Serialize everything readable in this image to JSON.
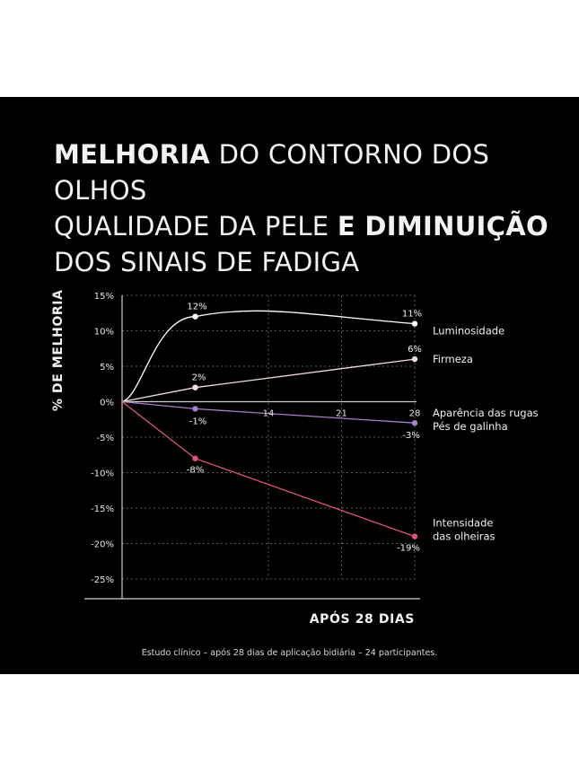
{
  "headline": {
    "line1_bold": "MELHORIA",
    "line1_rest": " DO CONTORNO DOS OLHOS",
    "line2_normal": "QUALIDADE DA PELE ",
    "line2_bold": "E DIMINUIÇÃO",
    "line3": "DOS SINAIS DE FADIGA"
  },
  "colors": {
    "background": "#000000",
    "luminosidade": "#ffffff",
    "firmeza": "#f0dede",
    "rugas": "#a77fc4",
    "olheiras": "#e0517f"
  },
  "chart_data": {
    "type": "line",
    "ylabel": "% DE MELHORIA",
    "xlabel": "APÓS 28 DIAS",
    "ylim": [
      -25,
      15
    ],
    "xlim": [
      0,
      28
    ],
    "y_ticks": [
      "15%",
      "10%",
      "5%",
      "0%",
      "-5%",
      "-10%",
      "-15%",
      "-20%",
      "-25%"
    ],
    "y_tick_values": [
      15,
      10,
      5,
      0,
      -5,
      -10,
      -15,
      -20,
      -25
    ],
    "x_ticks": [
      "14",
      "21",
      "28"
    ],
    "x_tick_values": [
      14,
      21,
      28
    ],
    "grid": true,
    "series": [
      {
        "name": "Luminosidade",
        "color": "#ffffff",
        "x": [
          0,
          7,
          28
        ],
        "values": [
          0,
          12,
          11
        ],
        "point_labels": [
          "",
          "12%",
          "11%"
        ],
        "curve": "smooth"
      },
      {
        "name": "Firmeza",
        "color": "#f0dede",
        "x": [
          0,
          7,
          28
        ],
        "values": [
          0,
          2,
          6
        ],
        "point_labels": [
          "",
          "2%",
          "6%"
        ],
        "curve": "straight"
      },
      {
        "name": "Aparência das rugas\nPés de galinha",
        "color": "#a77fc4",
        "x": [
          0,
          7,
          28
        ],
        "values": [
          0,
          -1,
          -3
        ],
        "point_labels": [
          "",
          "-1%",
          "-3%"
        ],
        "curve": "straight"
      },
      {
        "name": "Intensidade\ndas olheiras",
        "color": "#e0517f",
        "x": [
          0,
          7,
          28
        ],
        "values": [
          0,
          -8,
          -19
        ],
        "point_labels": [
          "",
          "-8%",
          "-19%"
        ],
        "curve": "straight"
      }
    ]
  },
  "footnote": "Estudo clínico – após 28 dias de aplicação bidiária – 24 participantes."
}
